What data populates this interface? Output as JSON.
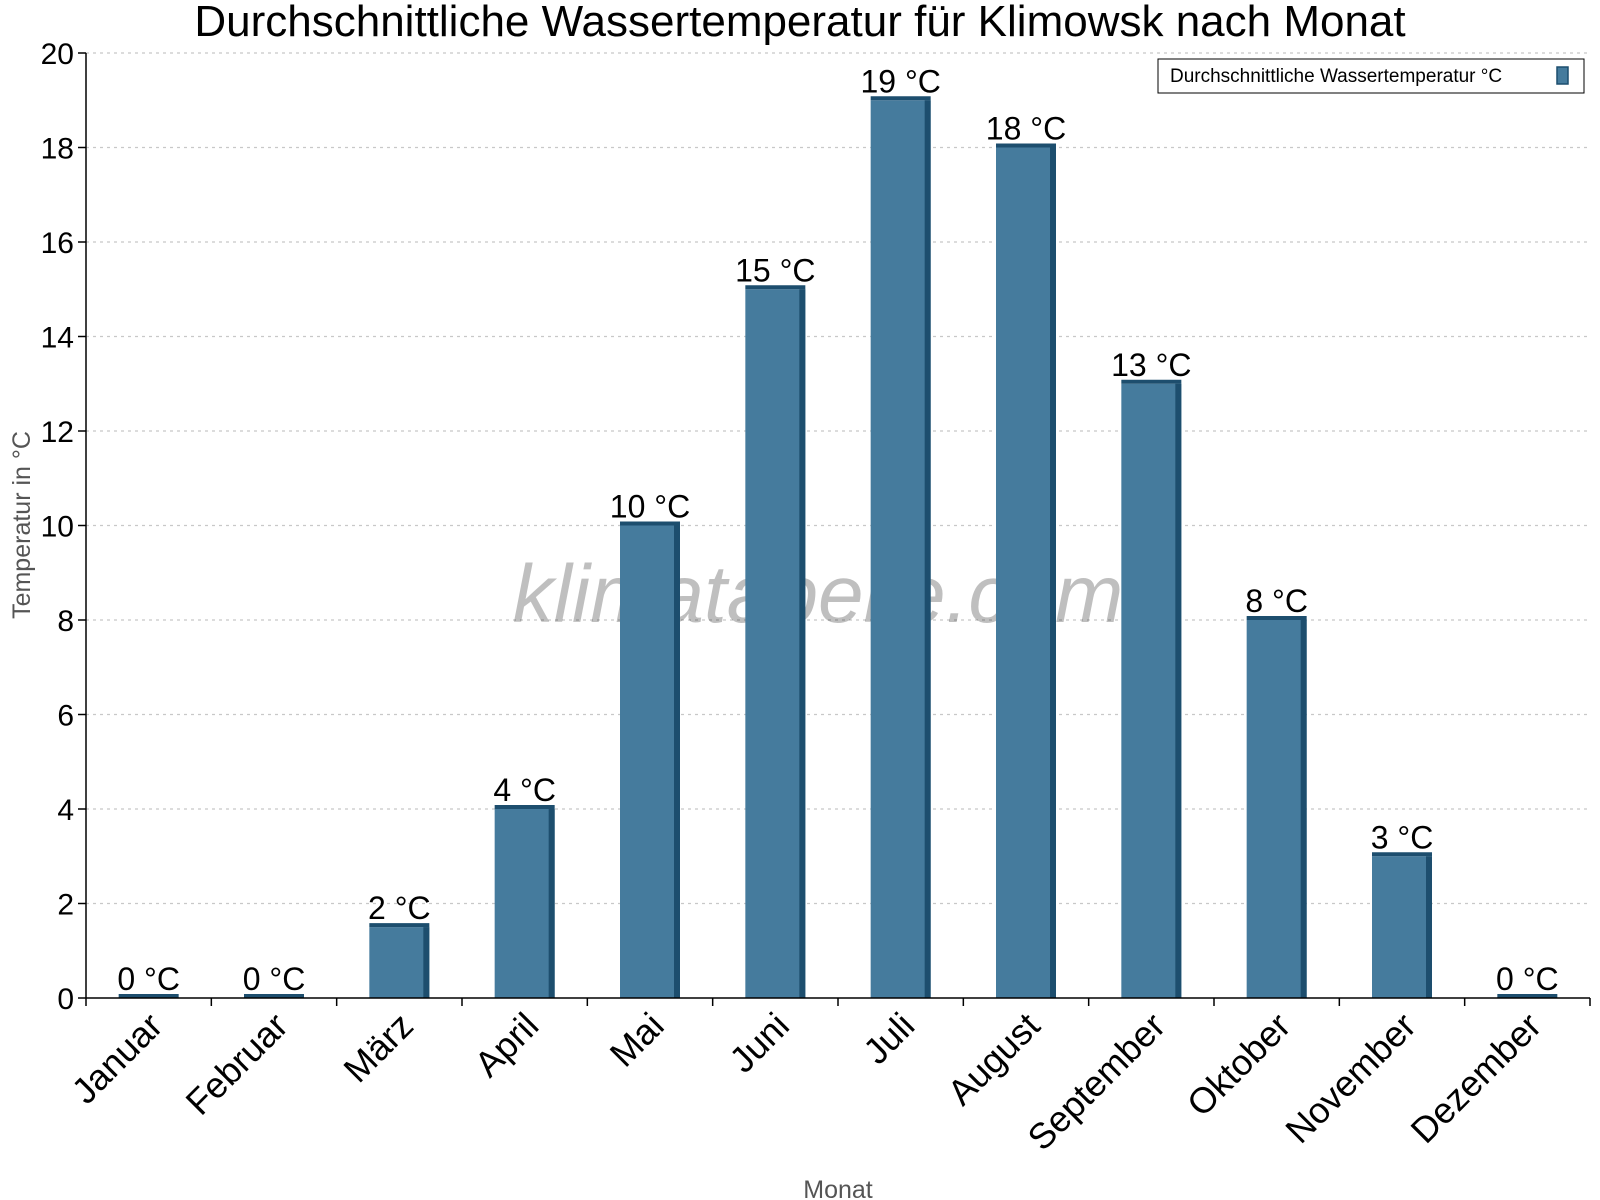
{
  "chart_data": {
    "type": "bar",
    "title": "Durchschnittliche Wassertemperatur für Klimowsk nach Monat",
    "xlabel": "Monat",
    "ylabel": "Temperatur in °C",
    "ylim": [
      0,
      20
    ],
    "yticks": [
      0,
      2,
      4,
      6,
      8,
      10,
      12,
      14,
      16,
      18,
      20
    ],
    "grid": true,
    "legend_position": "top-right",
    "categories": [
      "Januar",
      "Februar",
      "März",
      "April",
      "Mai",
      "Juni",
      "Juli",
      "August",
      "September",
      "Oktober",
      "November",
      "Dezember"
    ],
    "series": [
      {
        "name": "Durchschnittliche Wassertemperatur °C",
        "values": [
          0,
          0,
          1.5,
          4,
          10,
          15,
          19,
          18,
          13,
          8,
          3,
          0
        ],
        "labels": [
          "0 °C",
          "0 °C",
          "2 °C",
          "4 °C",
          "10 °C",
          "15 °C",
          "19 °C",
          "18 °C",
          "13 °C",
          "8 °C",
          "3 °C",
          "0 °C"
        ]
      }
    ],
    "colors": {
      "bar": "#457b9d",
      "bar_side": "#1d4e6e",
      "grid": "#c8c8c8",
      "axis": "#000000"
    },
    "watermark": "klimatabelle.com"
  }
}
